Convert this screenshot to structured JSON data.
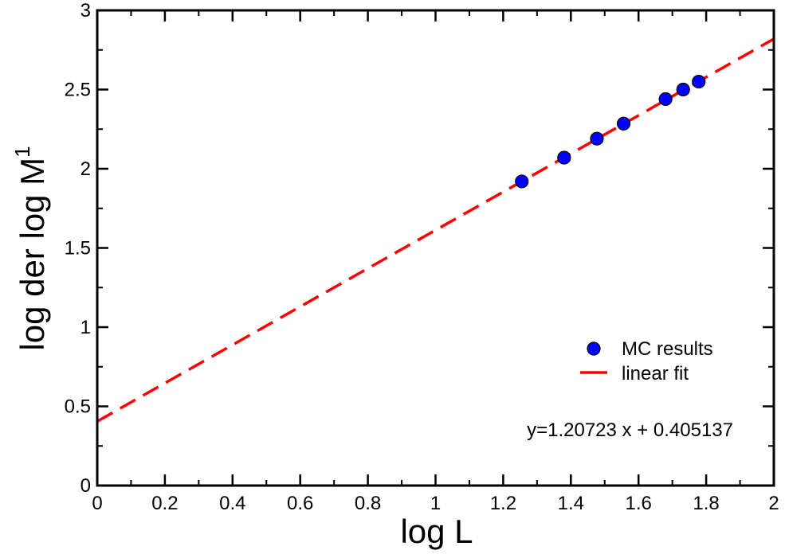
{
  "chart_data": {
    "type": "scatter",
    "title": "",
    "xlabel": "log L",
    "ylabel_main": "log der log M",
    "ylabel_sup": "1",
    "xlim": [
      0,
      2
    ],
    "ylim": [
      0,
      3
    ],
    "x_ticks": [
      0,
      0.2,
      0.4,
      0.6,
      0.8,
      1,
      1.2,
      1.4,
      1.6,
      1.8,
      2
    ],
    "x_tick_labels": [
      "0",
      "0.2",
      "0.4",
      "0.6",
      "0.8",
      "1",
      "1.2",
      "1.4",
      "1.6",
      "1.8",
      "2"
    ],
    "y_ticks": [
      0,
      0.5,
      1,
      1.5,
      2,
      2.5,
      3
    ],
    "y_tick_labels": [
      "0",
      "0.5",
      "1",
      "1.5",
      "2",
      "2.5",
      "3"
    ],
    "series": [
      {
        "name": "MC results",
        "kind": "scatter",
        "color": "#0000ff",
        "x": [
          1.255,
          1.38,
          1.477,
          1.556,
          1.68,
          1.732,
          1.778
        ],
        "y": [
          1.92,
          2.07,
          2.19,
          2.285,
          2.44,
          2.5,
          2.55
        ]
      },
      {
        "name": "linear fit",
        "kind": "line",
        "color": "#ff0000",
        "slope": 1.20723,
        "intercept": 0.405137
      }
    ],
    "legend_position": "bottom-right",
    "annotation": "y=1.20723 x + 0.405137"
  }
}
